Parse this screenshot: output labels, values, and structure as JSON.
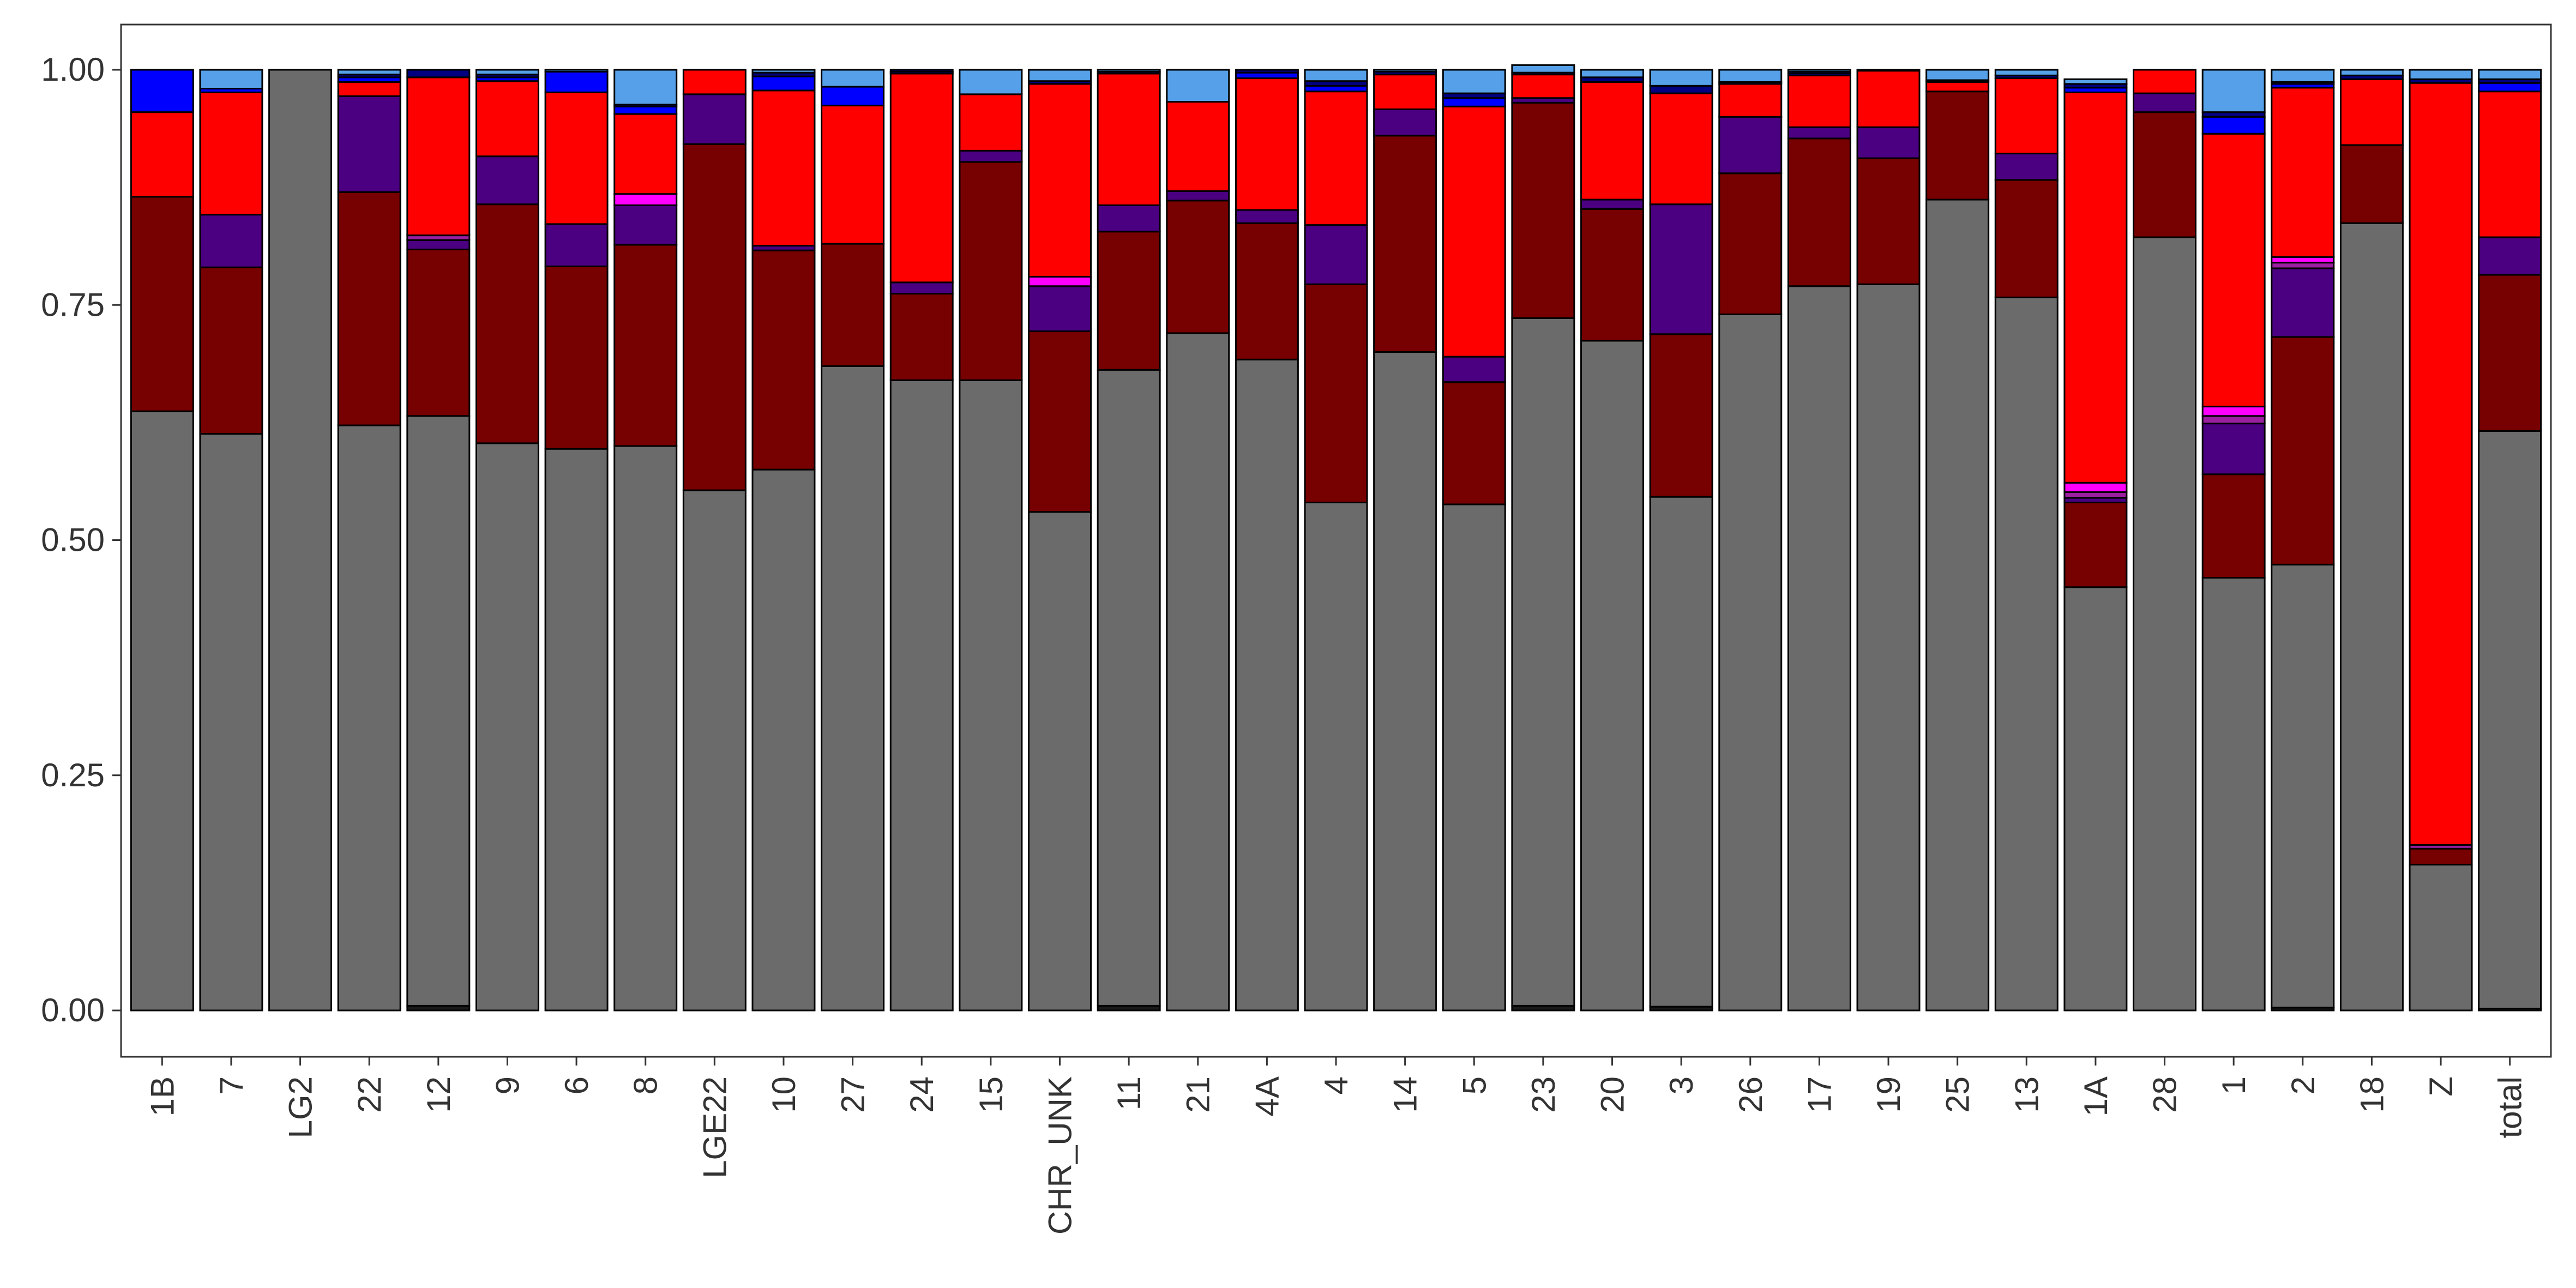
{
  "chart_data": {
    "type": "bar",
    "stacked": true,
    "normalized": true,
    "title": "",
    "xlabel": "",
    "ylabel": "",
    "ylim": [
      0,
      1
    ],
    "grid": false,
    "legend": "none",
    "y_ticks": [
      "0.00",
      "0.25",
      "0.50",
      "0.75",
      "1.00"
    ],
    "y_tick_values": [
      0,
      0.25,
      0.5,
      0.75,
      1.0
    ],
    "categories": [
      "1B",
      "7",
      "LG2",
      "22",
      "12",
      "9",
      "6",
      "8",
      "LGE22",
      "10",
      "27",
      "24",
      "15",
      "CHR_UNK",
      "11",
      "21",
      "4A",
      "4",
      "14",
      "5",
      "23",
      "20",
      "3",
      "26",
      "17",
      "19",
      "25",
      "13",
      "1A",
      "28",
      "1",
      "2",
      "18",
      "Z",
      "total"
    ],
    "series_colors": [
      "#1a1a1a",
      "#6b6b6b",
      "#770000",
      "#4a0080",
      "#9b1fa0",
      "#ff00ff",
      "#ff0000",
      "#0000ff",
      "#000080",
      "#55a0e8"
    ],
    "series": [
      {
        "values": [
          0,
          0,
          0,
          0,
          0.005,
          0,
          0,
          0,
          0,
          0,
          0,
          0,
          0,
          0,
          0.005,
          0,
          0,
          0,
          0,
          0,
          0.005,
          0,
          0.004,
          0,
          0,
          0,
          0,
          0,
          0,
          0,
          0,
          0.003,
          0,
          0,
          0.002
        ]
      },
      {
        "values": [
          0.637,
          0.613,
          1.0,
          0.622,
          0.627,
          0.603,
          0.597,
          0.6,
          0.553,
          0.575,
          0.685,
          0.67,
          0.67,
          0.53,
          0.676,
          0.72,
          0.692,
          0.54,
          0.7,
          0.538,
          0.731,
          0.712,
          0.542,
          0.74,
          0.77,
          0.772,
          0.862,
          0.758,
          0.45,
          0.822,
          0.46,
          0.471,
          0.837,
          0.155,
          0.614
        ]
      },
      {
        "values": [
          0.228,
          0.177,
          0,
          0.248,
          0.177,
          0.254,
          0.194,
          0.214,
          0.368,
          0.233,
          0.13,
          0.092,
          0.232,
          0.192,
          0.147,
          0.141,
          0.145,
          0.232,
          0.23,
          0.13,
          0.229,
          0.14,
          0.173,
          0.15,
          0.157,
          0.134,
          0.115,
          0.125,
          0.09,
          0.133,
          0.11,
          0.242,
          0.083,
          0.017,
          0.166
        ]
      },
      {
        "values": [
          0,
          0.056,
          0,
          0.102,
          0.01,
          0.051,
          0.045,
          0.042,
          0.053,
          0.005,
          0,
          0.012,
          0.012,
          0.048,
          0.028,
          0.01,
          0.014,
          0.063,
          0.028,
          0.027,
          0.005,
          0.01,
          0.138,
          0.06,
          0.012,
          0.033,
          0,
          0.028,
          0.005,
          0.02,
          0.054,
          0.073,
          0,
          0,
          0.04
        ]
      },
      {
        "values": [
          0,
          0,
          0,
          0,
          0.005,
          0,
          0,
          0,
          0,
          0,
          0,
          0,
          0,
          0,
          0,
          0,
          0,
          0,
          0,
          0,
          0,
          0,
          0,
          0,
          0,
          0,
          0,
          0,
          0.006,
          0,
          0.008,
          0.006,
          0,
          0.004,
          0
        ]
      },
      {
        "values": [
          0,
          0,
          0,
          0,
          0,
          0,
          0,
          0.012,
          0,
          0,
          0,
          0,
          0,
          0.01,
          0,
          0,
          0,
          0,
          0,
          0,
          0,
          0,
          0,
          0,
          0,
          0,
          0,
          0,
          0.01,
          0,
          0.01,
          0.006,
          0,
          0,
          0
        ]
      },
      {
        "values": [
          0.09,
          0.13,
          0,
          0.015,
          0.168,
          0.08,
          0.14,
          0.085,
          0.026,
          0.165,
          0.147,
          0.222,
          0.06,
          0.205,
          0.14,
          0.095,
          0.14,
          0.142,
          0.037,
          0.266,
          0.025,
          0.125,
          0.118,
          0.035,
          0.055,
          0.06,
          0.01,
          0.08,
          0.415,
          0.025,
          0.29,
          0.18,
          0.07,
          0.81,
          0.155
        ]
      },
      {
        "values": [
          0.045,
          0.004,
          0,
          0.005,
          0,
          0.004,
          0.022,
          0.008,
          0,
          0.015,
          0.02,
          0.002,
          0,
          0,
          0,
          0,
          0.006,
          0.006,
          0,
          0.009,
          0,
          0,
          0,
          0,
          0.002,
          0,
          0,
          0,
          0.005,
          0,
          0.018,
          0.004,
          0,
          0,
          0.009
        ]
      },
      {
        "values": [
          0,
          0,
          0,
          0.003,
          0.008,
          0.003,
          0,
          0.002,
          0,
          0.004,
          0,
          0.002,
          0,
          0.003,
          0.002,
          0,
          0.003,
          0.005,
          0.003,
          0.005,
          0.002,
          0.005,
          0.008,
          0.002,
          0.002,
          0,
          0.002,
          0.003,
          0.004,
          0,
          0.005,
          0.002,
          0.004,
          0.004,
          0.004
        ]
      },
      {
        "values": [
          0,
          0.02,
          0,
          0.005,
          0,
          0.005,
          0.002,
          0.037,
          0,
          0.003,
          0.018,
          0,
          0.026,
          0.012,
          0.002,
          0.034,
          0,
          0.012,
          0.002,
          0.025,
          0.008,
          0.008,
          0.017,
          0.013,
          0.002,
          0.001,
          0.011,
          0.006,
          0.005,
          0,
          0.045,
          0.013,
          0.006,
          0.01,
          0.01
        ]
      }
    ]
  }
}
